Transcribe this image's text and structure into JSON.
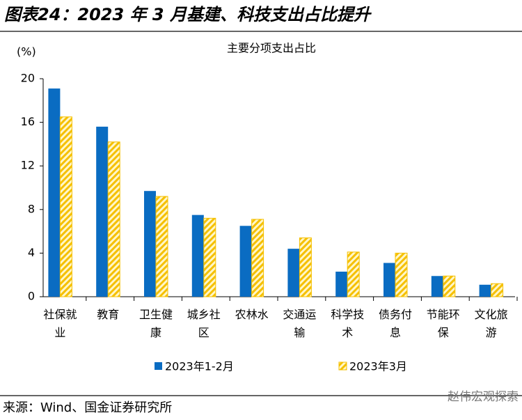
{
  "header": {
    "title": "图表24：2023 年 3 月基建、科技支出占比提升"
  },
  "chart_data": {
    "type": "bar",
    "title": "主要分项支出占比",
    "ylabel": "(%)",
    "categories": [
      "社保就业",
      "教育",
      "卫生健康",
      "城乡社区",
      "农林水",
      "交通运输",
      "科学技术",
      "债务付息",
      "节能环保",
      "文化旅游"
    ],
    "series": [
      {
        "name": "2023年1-2月",
        "color": "#0a6cc2",
        "values": [
          19.1,
          15.6,
          9.7,
          7.5,
          6.5,
          4.4,
          2.3,
          3.1,
          1.9,
          1.1
        ]
      },
      {
        "name": "2023年3月",
        "color": "#f5c000",
        "values": [
          16.5,
          14.2,
          9.2,
          7.2,
          7.1,
          5.4,
          4.1,
          4.0,
          1.9,
          1.2
        ]
      }
    ],
    "ylim": [
      0,
      20
    ],
    "yticks": [
      0,
      4,
      8,
      12,
      16,
      20
    ]
  },
  "footer": {
    "source": "来源：Wind、国金证券研究所",
    "watermark": "赵伟宏观探索"
  }
}
